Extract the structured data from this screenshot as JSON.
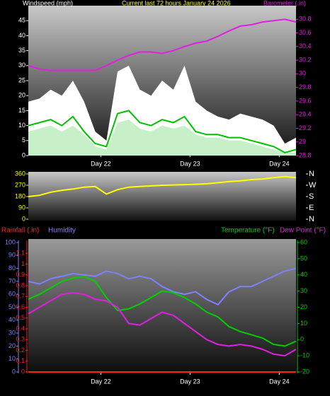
{
  "chart_data": [
    {
      "type": "line",
      "title": "Current last 72 hours January 24 2026",
      "y_label": "Windspeed (mph)",
      "y2_label": "Barometer (.in)",
      "x": [
        0,
        3,
        6,
        9,
        12,
        15,
        18,
        21,
        24,
        27,
        30,
        33,
        36,
        39,
        42,
        45,
        48,
        51,
        54,
        57,
        60,
        63,
        66,
        69,
        72
      ],
      "xlim": [
        0,
        72
      ],
      "xticks": [
        {
          "value": 19.5,
          "label": "Day 22"
        },
        {
          "value": 43.5,
          "label": "Day 23"
        },
        {
          "value": 67.5,
          "label": "Day 24"
        }
      ],
      "ylim": [
        0,
        50
      ],
      "yticks": [
        0,
        5,
        10,
        15,
        20,
        25,
        30,
        35,
        40,
        45
      ],
      "y2lim": [
        28.8,
        31
      ],
      "y2ticks": [
        28.8,
        29,
        29.2,
        29.4,
        29.6,
        29.8,
        30,
        30.2,
        30.4,
        30.6,
        30.8
      ],
      "series": [
        {
          "color": "#ffffff",
          "fill": true,
          "values": [
            18,
            19,
            22,
            20,
            25,
            18,
            8,
            5,
            28,
            30,
            22,
            20,
            25,
            22,
            30,
            18,
            15,
            13,
            12,
            14,
            13,
            12,
            10,
            4,
            6
          ]
        },
        {
          "color": "#c8f0c8",
          "fill": true,
          "values": [
            8,
            9,
            10,
            8,
            10,
            7,
            3,
            2,
            11,
            12,
            9,
            8,
            10,
            9,
            10,
            7,
            6,
            6,
            5,
            5,
            4,
            3,
            2,
            1,
            1
          ]
        },
        {
          "color": "#00c000",
          "values": [
            10,
            11,
            12,
            10,
            13,
            8,
            4,
            3,
            14,
            15,
            11,
            10,
            12,
            11,
            13,
            8,
            7,
            7,
            6,
            6,
            5,
            4,
            3,
            1,
            2
          ]
        },
        {
          "color": "#e020e0",
          "axis": "y2",
          "values": [
            30.12,
            30.07,
            30.05,
            30.05,
            30.05,
            30.05,
            30.05,
            30.12,
            30.2,
            30.27,
            30.32,
            30.32,
            30.3,
            30.34,
            30.4,
            30.45,
            30.48,
            30.55,
            30.63,
            30.7,
            30.72,
            30.76,
            30.78,
            30.8,
            30.76
          ]
        }
      ]
    },
    {
      "type": "line",
      "x": [
        0,
        3,
        6,
        9,
        12,
        15,
        18,
        21,
        24,
        27,
        30,
        33,
        36,
        39,
        42,
        45,
        48,
        51,
        54,
        57,
        60,
        63,
        66,
        69,
        72
      ],
      "xlim": [
        0,
        72
      ],
      "ylim": [
        0,
        360
      ],
      "yticks": [
        0,
        90,
        180,
        270,
        360
      ],
      "y2lim": [
        0,
        360
      ],
      "y2ticks": [
        {
          "value": 0,
          "label": "N"
        },
        {
          "value": 90,
          "label": "E"
        },
        {
          "value": 180,
          "label": "S"
        },
        {
          "value": 270,
          "label": "W"
        },
        {
          "value": 360,
          "label": "N"
        }
      ],
      "series": [
        {
          "color": "#ffff00",
          "values": [
            180,
            190,
            215,
            230,
            240,
            255,
            260,
            200,
            235,
            255,
            260,
            265,
            270,
            272,
            275,
            278,
            282,
            290,
            300,
            305,
            315,
            320,
            330,
            340,
            330
          ]
        }
      ]
    },
    {
      "type": "line",
      "x": [
        0,
        3,
        6,
        9,
        12,
        15,
        18,
        21,
        24,
        27,
        30,
        33,
        36,
        39,
        42,
        45,
        48,
        51,
        54,
        57,
        60,
        63,
        66,
        69,
        72
      ],
      "xlim": [
        0,
        72
      ],
      "xticks": [
        {
          "value": 19.5,
          "label": "Day 22"
        },
        {
          "value": 43.5,
          "label": "Day 23"
        },
        {
          "value": 67.5,
          "label": "Day 24"
        }
      ],
      "ylim": [
        0,
        100
      ],
      "yticks": [
        0,
        10,
        20,
        30,
        40,
        50,
        60,
        70,
        80,
        90,
        100
      ],
      "y2lim": [
        -20,
        60
      ],
      "y2ticks": [
        -20,
        -10,
        0,
        10,
        20,
        30,
        40,
        50,
        60
      ],
      "y3lim": [
        0,
        1.2
      ],
      "y3ticks": [
        0,
        0.1,
        0.2,
        0.3,
        0.4,
        0.5,
        0.6,
        0.7,
        0.8,
        0.9,
        1,
        1.1
      ],
      "series": [
        {
          "name": "Rainfall (.in)",
          "color": "#ff2020",
          "axis": "y3",
          "values": [
            0,
            0,
            0,
            0,
            0,
            0,
            0,
            0,
            0,
            0,
            0,
            0,
            0,
            0,
            0,
            0,
            0,
            0,
            0,
            0,
            0,
            0,
            0,
            0,
            0
          ]
        },
        {
          "name": "Humidity",
          "color": "#8080ff",
          "values": [
            70,
            68,
            72,
            74,
            76,
            75,
            74,
            78,
            76,
            72,
            74,
            72,
            66,
            62,
            60,
            62,
            56,
            52,
            62,
            66,
            66,
            70,
            74,
            78,
            80
          ]
        },
        {
          "name": "Temperature (°F)",
          "color": "#00d000",
          "axis": "y2",
          "values": [
            25,
            28,
            32,
            36,
            38,
            39,
            36,
            26,
            18,
            19,
            22,
            26,
            30,
            29,
            26,
            22,
            17,
            14,
            8,
            5,
            3,
            1,
            -3,
            -4,
            -1
          ]
        },
        {
          "name": "Dew Point (°F)",
          "color": "#e020e0",
          "axis": "y2",
          "values": [
            16,
            20,
            24,
            28,
            29,
            28,
            25,
            24,
            20,
            10,
            9,
            13,
            17,
            15,
            10,
            5,
            0,
            -3,
            -4,
            -3,
            -4,
            -6,
            -9,
            -10,
            -6
          ]
        }
      ]
    }
  ]
}
